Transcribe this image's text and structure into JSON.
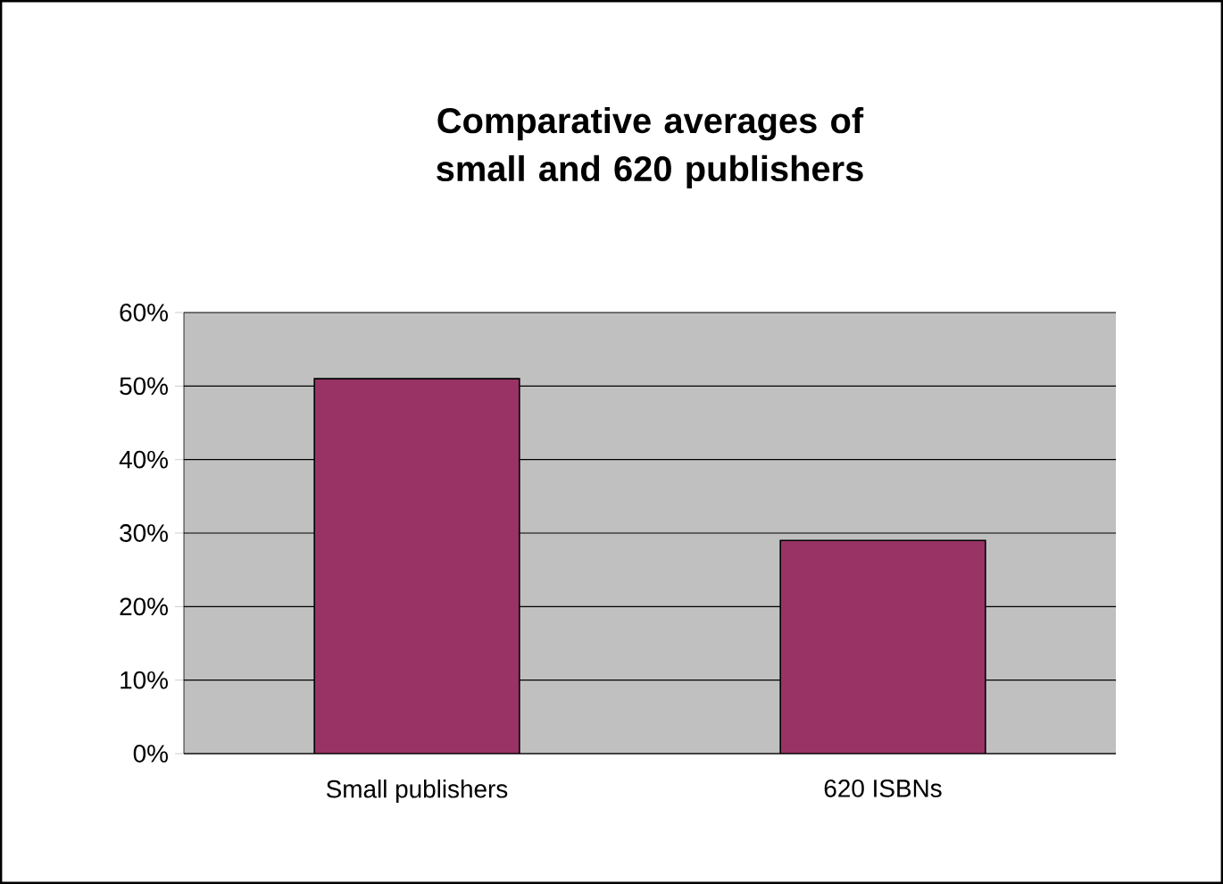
{
  "chart_data": {
    "type": "bar",
    "title": "Comparative averages of small and 620 publishers",
    "categories": [
      "Small publishers",
      "620 ISBNs"
    ],
    "values": [
      51,
      29
    ],
    "color": "#993366",
    "ylim": [
      0,
      60
    ],
    "yticks": [
      {
        "value": 0,
        "label": "0%"
      },
      {
        "value": 10,
        "label": "10%"
      },
      {
        "value": 20,
        "label": "20%"
      },
      {
        "value": 30,
        "label": "30%"
      },
      {
        "value": 40,
        "label": "40%"
      },
      {
        "value": 50,
        "label": "50%"
      },
      {
        "value": 60,
        "label": "60%"
      }
    ],
    "grid": "y"
  }
}
